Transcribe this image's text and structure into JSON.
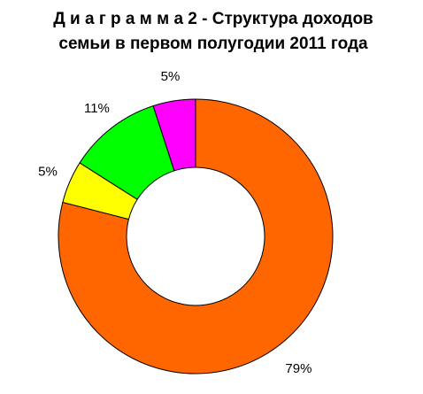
{
  "chart_data": {
    "type": "pie",
    "title": [
      "Д и а г р а м м а   2 - Структура доходов",
      "семьи в первом полугодии 2011 года"
    ],
    "values": [
      79,
      5,
      11,
      5
    ],
    "value_labels": [
      "79%",
      "5%",
      "11%",
      "5%"
    ],
    "colors": [
      "#ff6600",
      "#ffff00",
      "#00ff00",
      "#ff00ff"
    ]
  }
}
